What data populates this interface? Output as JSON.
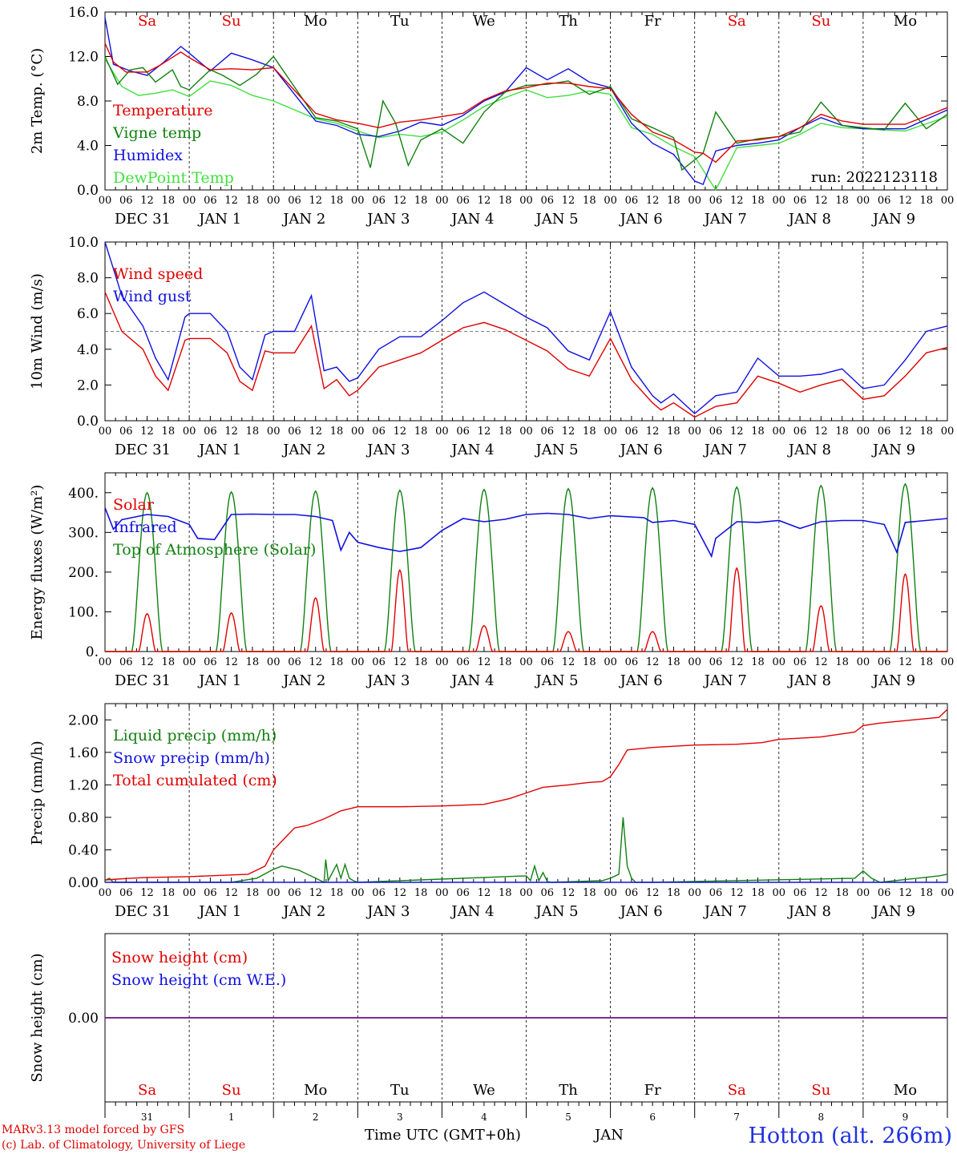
{
  "run_label": "run: 2022123118",
  "day_row_top": [
    "Sa",
    "Su",
    "Mo",
    "Tu",
    "We",
    "Th",
    "Fr",
    "Sa",
    "Su",
    "Mo"
  ],
  "day_row_bottom": [
    "Sa",
    "Su",
    "Mo",
    "Tu",
    "We",
    "Th",
    "Fr",
    "Sa",
    "Su",
    "Mo"
  ],
  "weekend_color": "#e00000",
  "hour_ticks": [
    "00",
    "06",
    "12",
    "18"
  ],
  "date_labels": [
    "DEC 31",
    "JAN  1",
    "JAN  2",
    "JAN  3",
    "JAN  4",
    "JAN  5",
    "JAN  6",
    "JAN  7",
    "JAN  8",
    "JAN  9"
  ],
  "bottom_day_numbers": [
    "31",
    "1",
    "2",
    "3",
    "4",
    "5",
    "6",
    "7",
    "8",
    "9"
  ],
  "footer": {
    "model": "MARv3.13 model forced by GFS",
    "copyright": "(c) Lab. of Climatology, University of Liege",
    "xlabel": "Time UTC (GMT+0h)",
    "month": "JAN",
    "station": "Hotton (alt. 266m)"
  },
  "chart_data": [
    {
      "type": "line",
      "ylabel": "2m Temp. (°C)",
      "ylim": [
        0,
        16
      ],
      "yticks": [
        "0.0",
        "4.0",
        "8.0",
        "12.0",
        "16.0"
      ],
      "x_unit": "day",
      "series": [
        {
          "name": "Temperature",
          "color": "#e00000",
          "x": [
            0,
            0.1,
            0.25,
            0.5,
            0.65,
            0.9,
            1.0,
            1.25,
            1.5,
            1.75,
            2.0,
            2.5,
            2.75,
            3.0,
            3.25,
            3.5,
            3.75,
            4.0,
            4.25,
            4.5,
            4.75,
            5.0,
            5.25,
            5.5,
            5.75,
            6.0,
            6.25,
            6.5,
            6.75,
            7.0,
            7.1,
            7.25,
            7.5,
            7.75,
            8.0,
            8.25,
            8.5,
            8.75,
            9.0,
            9.5,
            10.0
          ],
          "values": [
            13.2,
            11.5,
            10.6,
            10.6,
            11.2,
            12.4,
            11.9,
            10.8,
            10.9,
            10.8,
            11.0,
            6.9,
            6.3,
            6.0,
            5.6,
            6.1,
            6.3,
            6.6,
            6.9,
            8.1,
            8.9,
            9.2,
            9.6,
            9.6,
            9.3,
            9.1,
            6.8,
            5.2,
            4.5,
            3.4,
            3.3,
            2.5,
            4.4,
            4.5,
            4.8,
            5.6,
            6.8,
            6.2,
            5.9,
            5.9,
            7.4
          ]
        },
        {
          "name": "Vigne temp",
          "color": "#108010",
          "x": [
            0,
            0.15,
            0.3,
            0.45,
            0.6,
            0.8,
            0.9,
            1.0,
            1.25,
            1.4,
            1.6,
            1.8,
            2.0,
            2.5,
            2.75,
            3.0,
            3.15,
            3.3,
            3.45,
            3.6,
            3.75,
            4.0,
            4.25,
            4.5,
            4.75,
            5.0,
            5.25,
            5.5,
            5.75,
            6.0,
            6.25,
            6.5,
            6.75,
            6.85,
            7.1,
            7.25,
            7.5,
            7.75,
            8.0,
            8.25,
            8.5,
            8.75,
            9.0,
            9.25,
            9.5,
            9.75,
            10.0
          ],
          "values": [
            12.0,
            9.5,
            10.8,
            11.0,
            9.7,
            10.8,
            9.3,
            9.0,
            10.8,
            10.3,
            9.4,
            10.4,
            12.0,
            6.5,
            6.2,
            5.5,
            2.0,
            8.0,
            6.0,
            2.2,
            4.5,
            5.5,
            4.2,
            7.0,
            8.8,
            9.4,
            9.5,
            9.8,
            8.6,
            9.3,
            6.4,
            5.6,
            4.7,
            1.8,
            3.3,
            7.0,
            4.2,
            4.6,
            4.8,
            5.2,
            7.9,
            5.8,
            5.6,
            5.4,
            7.8,
            5.5,
            6.8
          ]
        },
        {
          "name": "Humidex",
          "color": "#1010e0",
          "x": [
            0,
            0.1,
            0.3,
            0.5,
            0.7,
            0.9,
            1.0,
            1.25,
            1.5,
            1.75,
            2.0,
            2.5,
            2.75,
            3.0,
            3.25,
            3.5,
            3.75,
            4.0,
            4.25,
            4.5,
            4.75,
            5.0,
            5.25,
            5.5,
            5.75,
            6.0,
            6.25,
            6.5,
            6.75,
            7.0,
            7.1,
            7.25,
            7.5,
            7.75,
            8.0,
            8.25,
            8.5,
            8.75,
            9.0,
            9.5,
            10.0
          ],
          "values": [
            15.5,
            11.3,
            10.7,
            10.3,
            11.5,
            12.9,
            12.3,
            10.7,
            12.3,
            11.7,
            11.0,
            6.2,
            5.8,
            5.0,
            4.8,
            5.3,
            6.1,
            5.8,
            6.7,
            8.0,
            8.8,
            11.0,
            9.9,
            10.9,
            9.7,
            9.2,
            6.0,
            4.2,
            3.2,
            0.8,
            0.5,
            3.5,
            4.0,
            4.2,
            4.5,
            5.6,
            6.5,
            5.8,
            5.5,
            5.5,
            7.2
          ]
        },
        {
          "name": "DewPoint Temp",
          "color": "#40e040",
          "x": [
            0,
            0.2,
            0.4,
            0.6,
            0.8,
            1.0,
            1.25,
            1.5,
            1.75,
            2.0,
            2.5,
            2.75,
            3.0,
            3.25,
            3.5,
            3.75,
            4.0,
            4.25,
            4.5,
            4.75,
            5.0,
            5.25,
            5.5,
            5.75,
            6.0,
            6.25,
            6.5,
            6.75,
            7.0,
            7.25,
            7.5,
            7.75,
            8.0,
            8.25,
            8.5,
            8.75,
            9.0,
            9.5,
            10.0
          ],
          "values": [
            11.8,
            9.3,
            8.5,
            8.7,
            9.0,
            8.4,
            9.8,
            9.4,
            8.5,
            8.0,
            6.4,
            6.0,
            5.3,
            4.7,
            5.0,
            4.8,
            5.2,
            6.3,
            7.5,
            8.3,
            9.0,
            8.3,
            8.5,
            8.9,
            8.6,
            5.6,
            5.0,
            3.9,
            3.0,
            0.0,
            3.8,
            4.0,
            4.2,
            5.0,
            6.0,
            5.6,
            5.5,
            5.3,
            6.6
          ]
        }
      ]
    },
    {
      "type": "line",
      "ylabel": "10m Wind (m/s)",
      "ylim": [
        0,
        10
      ],
      "yticks": [
        "0.0",
        "2.0",
        "4.0",
        "6.0",
        "8.0",
        "10.0"
      ],
      "reference_line": 5.0,
      "series": [
        {
          "name": "Wind speed",
          "color": "#e00000",
          "x": [
            0,
            0.2,
            0.45,
            0.6,
            0.75,
            0.95,
            1.0,
            1.25,
            1.45,
            1.6,
            1.75,
            1.9,
            2.0,
            2.25,
            2.45,
            2.6,
            2.75,
            2.9,
            3.0,
            3.25,
            3.5,
            3.75,
            4.0,
            4.25,
            4.5,
            4.75,
            5.0,
            5.25,
            5.5,
            5.75,
            6.0,
            6.25,
            6.5,
            6.6,
            6.75,
            7.0,
            7.25,
            7.5,
            7.75,
            8.0,
            8.25,
            8.5,
            8.75,
            9.0,
            9.25,
            9.5,
            9.75,
            10.0
          ],
          "values": [
            7.2,
            5.0,
            4.0,
            2.5,
            1.7,
            4.5,
            4.6,
            4.6,
            3.8,
            2.2,
            1.7,
            3.9,
            3.8,
            3.8,
            5.3,
            1.8,
            2.3,
            1.4,
            1.7,
            3.0,
            3.4,
            3.8,
            4.5,
            5.2,
            5.5,
            5.1,
            4.5,
            3.9,
            2.9,
            2.5,
            4.6,
            2.3,
            1.0,
            0.6,
            1.0,
            0.2,
            0.8,
            1.0,
            2.5,
            2.1,
            1.6,
            2.0,
            2.3,
            1.2,
            1.4,
            2.5,
            3.8,
            4.1
          ]
        },
        {
          "name": "Wind gust",
          "color": "#1010e0",
          "x": [
            0,
            0.2,
            0.45,
            0.6,
            0.75,
            0.95,
            1.0,
            1.25,
            1.45,
            1.6,
            1.75,
            1.9,
            2.0,
            2.25,
            2.45,
            2.6,
            2.75,
            2.9,
            3.0,
            3.25,
            3.5,
            3.75,
            4.0,
            4.25,
            4.5,
            4.75,
            5.0,
            5.25,
            5.5,
            5.75,
            6.0,
            6.25,
            6.5,
            6.6,
            6.75,
            7.0,
            7.25,
            7.5,
            7.75,
            8.0,
            8.25,
            8.5,
            8.75,
            9.0,
            9.25,
            9.5,
            9.75,
            10.0
          ],
          "values": [
            10.0,
            7.0,
            5.3,
            3.5,
            2.3,
            5.8,
            6.0,
            6.0,
            5.0,
            3.0,
            2.3,
            4.8,
            5.0,
            5.0,
            7.0,
            2.8,
            3.0,
            2.2,
            2.4,
            4.0,
            4.7,
            4.7,
            5.6,
            6.6,
            7.2,
            6.5,
            5.8,
            5.2,
            3.9,
            3.4,
            6.1,
            3.0,
            1.4,
            1.0,
            1.5,
            0.4,
            1.4,
            1.6,
            3.5,
            2.5,
            2.5,
            2.6,
            2.9,
            1.8,
            2.0,
            3.4,
            5.0,
            5.3
          ]
        }
      ]
    },
    {
      "type": "line",
      "ylabel": "Energy fluxes (W/m²)",
      "ylim": [
        0,
        450
      ],
      "yticks": [
        "0.",
        "100.",
        "200.",
        "300.",
        "400."
      ],
      "series": [
        {
          "name": "Solar",
          "color": "#e00000",
          "day_peaks": [
            95,
            97,
            135,
            205,
            65,
            50,
            50,
            210,
            115,
            195
          ]
        },
        {
          "name": "Infrared",
          "color": "#1010e0",
          "x": [
            0,
            0.1,
            0.2,
            0.5,
            0.75,
            1.0,
            1.1,
            1.3,
            1.5,
            1.75,
            2.0,
            2.25,
            2.5,
            2.7,
            2.8,
            2.9,
            3.0,
            3.25,
            3.5,
            3.75,
            4.0,
            4.25,
            4.5,
            4.75,
            5.0,
            5.25,
            5.5,
            5.75,
            6.0,
            6.4,
            6.5,
            6.75,
            7.0,
            7.2,
            7.25,
            7.5,
            7.75,
            8.0,
            8.25,
            8.5,
            8.75,
            9.0,
            9.25,
            9.4,
            9.5,
            10.0
          ],
          "values": [
            362,
            308,
            332,
            345,
            340,
            320,
            285,
            282,
            345,
            346,
            345,
            345,
            340,
            330,
            255,
            300,
            275,
            262,
            252,
            262,
            305,
            335,
            327,
            333,
            345,
            348,
            345,
            335,
            342,
            337,
            325,
            330,
            320,
            240,
            285,
            327,
            325,
            330,
            310,
            327,
            330,
            330,
            320,
            250,
            325,
            335
          ]
        },
        {
          "name": "Top of Atmosphere (Solar)",
          "color": "#108010",
          "day_peaks": [
            400,
            402,
            404,
            406,
            408,
            410,
            412,
            414,
            418,
            422
          ]
        }
      ]
    },
    {
      "type": "line",
      "ylabel": "Precip (mm/h)",
      "ylim": [
        0,
        2.2
      ],
      "yticks": [
        "0.00",
        "0.40",
        "0.80",
        "1.20",
        "1.60",
        "2.00"
      ],
      "series": [
        {
          "name": "Liquid precip (mm/h)",
          "color": "#108010",
          "x": [
            0,
            0.05,
            0.1,
            1.5,
            1.8,
            2.0,
            2.1,
            2.3,
            2.5,
            2.6,
            2.62,
            2.65,
            2.75,
            2.8,
            2.85,
            2.9,
            2.95,
            3.0,
            5.0,
            5.05,
            5.1,
            5.15,
            5.2,
            5.25,
            5.3,
            5.9,
            6.0,
            6.1,
            6.15,
            6.2,
            6.25,
            6.3,
            6.5,
            8.9,
            9.0,
            9.1,
            9.2,
            9.9,
            10.0
          ],
          "values": [
            0.02,
            0.05,
            0.0,
            0.0,
            0.05,
            0.16,
            0.2,
            0.15,
            0.05,
            0.0,
            0.28,
            0.02,
            0.22,
            0.05,
            0.22,
            0.05,
            0.02,
            0.0,
            0.08,
            0.02,
            0.2,
            0.02,
            0.12,
            0.01,
            0.0,
            0.02,
            0.05,
            0.1,
            0.8,
            0.2,
            0.05,
            0.0,
            0.0,
            0.05,
            0.14,
            0.05,
            0.0,
            0.08,
            0.1
          ]
        },
        {
          "name": "Snow precip (mm/h)",
          "color": "#1010e0",
          "x": [
            0,
            10
          ],
          "values": [
            0,
            0
          ]
        },
        {
          "name": "Total cumulated (cm)",
          "color": "#e00000",
          "x": [
            0,
            0.3,
            0.5,
            1.0,
            1.7,
            1.9,
            2.0,
            2.25,
            2.4,
            2.6,
            2.8,
            3.0,
            3.5,
            4.0,
            4.5,
            4.8,
            5.0,
            5.2,
            5.5,
            5.75,
            5.9,
            6.0,
            6.1,
            6.2,
            6.5,
            7.0,
            7.5,
            7.8,
            8.0,
            8.5,
            8.9,
            9.0,
            9.2,
            9.9,
            10.0
          ],
          "values": [
            0.03,
            0.05,
            0.06,
            0.07,
            0.1,
            0.2,
            0.4,
            0.67,
            0.7,
            0.78,
            0.88,
            0.93,
            0.93,
            0.94,
            0.96,
            1.03,
            1.1,
            1.17,
            1.2,
            1.23,
            1.24,
            1.3,
            1.45,
            1.63,
            1.66,
            1.69,
            1.7,
            1.72,
            1.76,
            1.79,
            1.85,
            1.93,
            1.96,
            2.03,
            2.13
          ]
        }
      ]
    },
    {
      "type": "line",
      "ylabel": "Snow height (cm)",
      "ylim": [
        -1,
        1
      ],
      "yticks": [
        "0.00"
      ],
      "series": [
        {
          "name": "Snow height (cm)",
          "color": "#e00000",
          "x": [
            0,
            10
          ],
          "values": [
            0,
            0
          ]
        },
        {
          "name": "Snow height (cm W.E.)",
          "color": "#1010e0",
          "x": [
            0,
            10
          ],
          "values": [
            0,
            0
          ]
        }
      ]
    }
  ]
}
